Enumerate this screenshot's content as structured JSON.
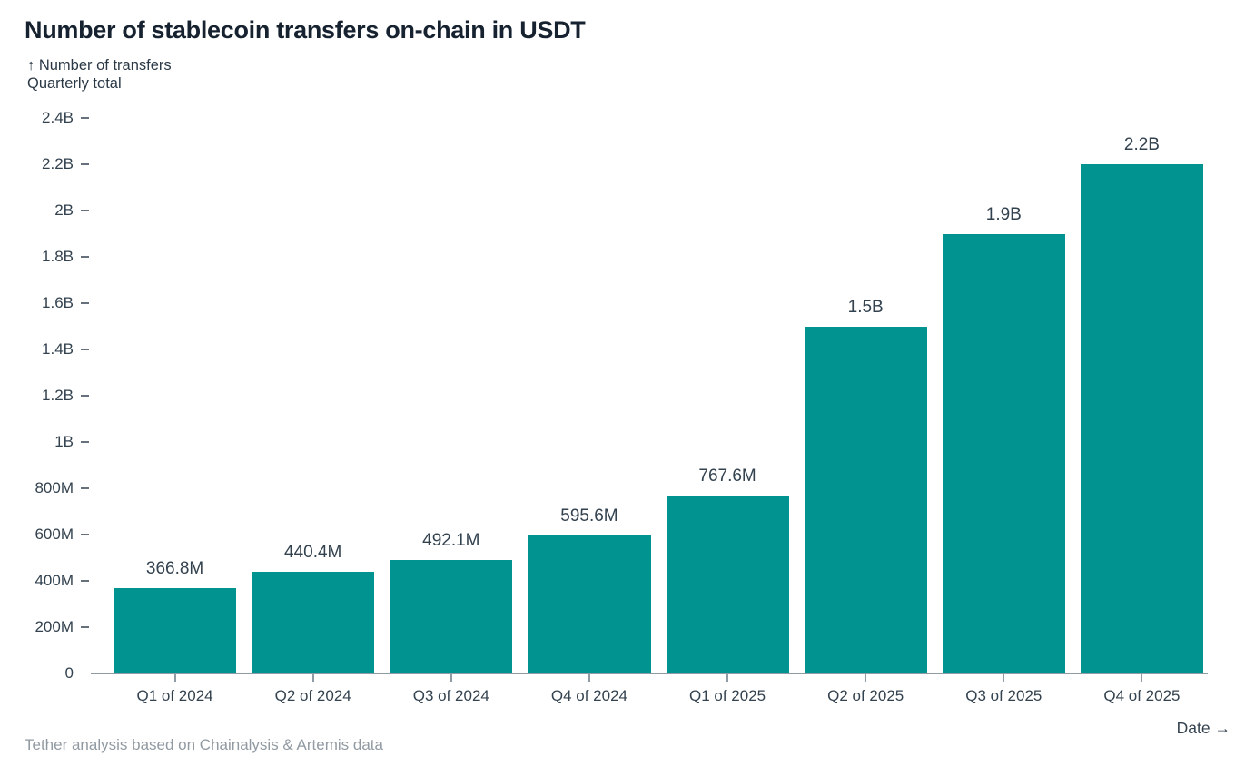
{
  "header": {
    "title": "Number of stablecoin transfers on-chain in USDT",
    "y_axis_arrow": "↑",
    "y_axis_title": "Number of transfers",
    "y_axis_subtitle": "Quarterly total"
  },
  "footer": {
    "x_axis_title": "Date →",
    "source": "Tether analysis based on Chainalysis & Artemis data"
  },
  "colors": {
    "bar": "#009390",
    "title": "#16222f",
    "label": "#33424f",
    "subtitle": "#2b3947",
    "axis": "#8f9ca5",
    "source": "#919aa2"
  },
  "chart_data": {
    "type": "bar",
    "title": "Number of stablecoin transfers on-chain in USDT",
    "xlabel": "Date",
    "ylabel": "Number of transfers, Quarterly total",
    "categories": [
      "Q1 of 2024",
      "Q2 of 2024",
      "Q3 of 2024",
      "Q4 of 2024",
      "Q1 of 2025",
      "Q2 of 2025",
      "Q3 of 2025",
      "Q4 of 2025"
    ],
    "values": [
      366800000,
      440400000,
      492100000,
      595600000,
      767600000,
      1500000000,
      1900000000,
      2200000000
    ],
    "value_labels": [
      "366.8M",
      "440.4M",
      "492.1M",
      "595.6M",
      "767.6M",
      "1.5B",
      "1.9B",
      "2.2B"
    ],
    "ylim": [
      0,
      2400000000
    ],
    "y_ticks": [
      {
        "label": "0",
        "value": 0
      },
      {
        "label": "200M",
        "value": 200000000
      },
      {
        "label": "400M",
        "value": 400000000
      },
      {
        "label": "600M",
        "value": 600000000
      },
      {
        "label": "800M",
        "value": 800000000
      },
      {
        "label": "1B",
        "value": 1000000000
      },
      {
        "label": "1.2B",
        "value": 1200000000
      },
      {
        "label": "1.4B",
        "value": 1400000000
      },
      {
        "label": "1.6B",
        "value": 1600000000
      },
      {
        "label": "1.8B",
        "value": 1800000000
      },
      {
        "label": "2B",
        "value": 2000000000
      },
      {
        "label": "2.2B",
        "value": 2200000000
      },
      {
        "label": "2.4B",
        "value": 2400000000
      }
    ],
    "grid": false,
    "legend": false,
    "bar_color": "#009390"
  }
}
